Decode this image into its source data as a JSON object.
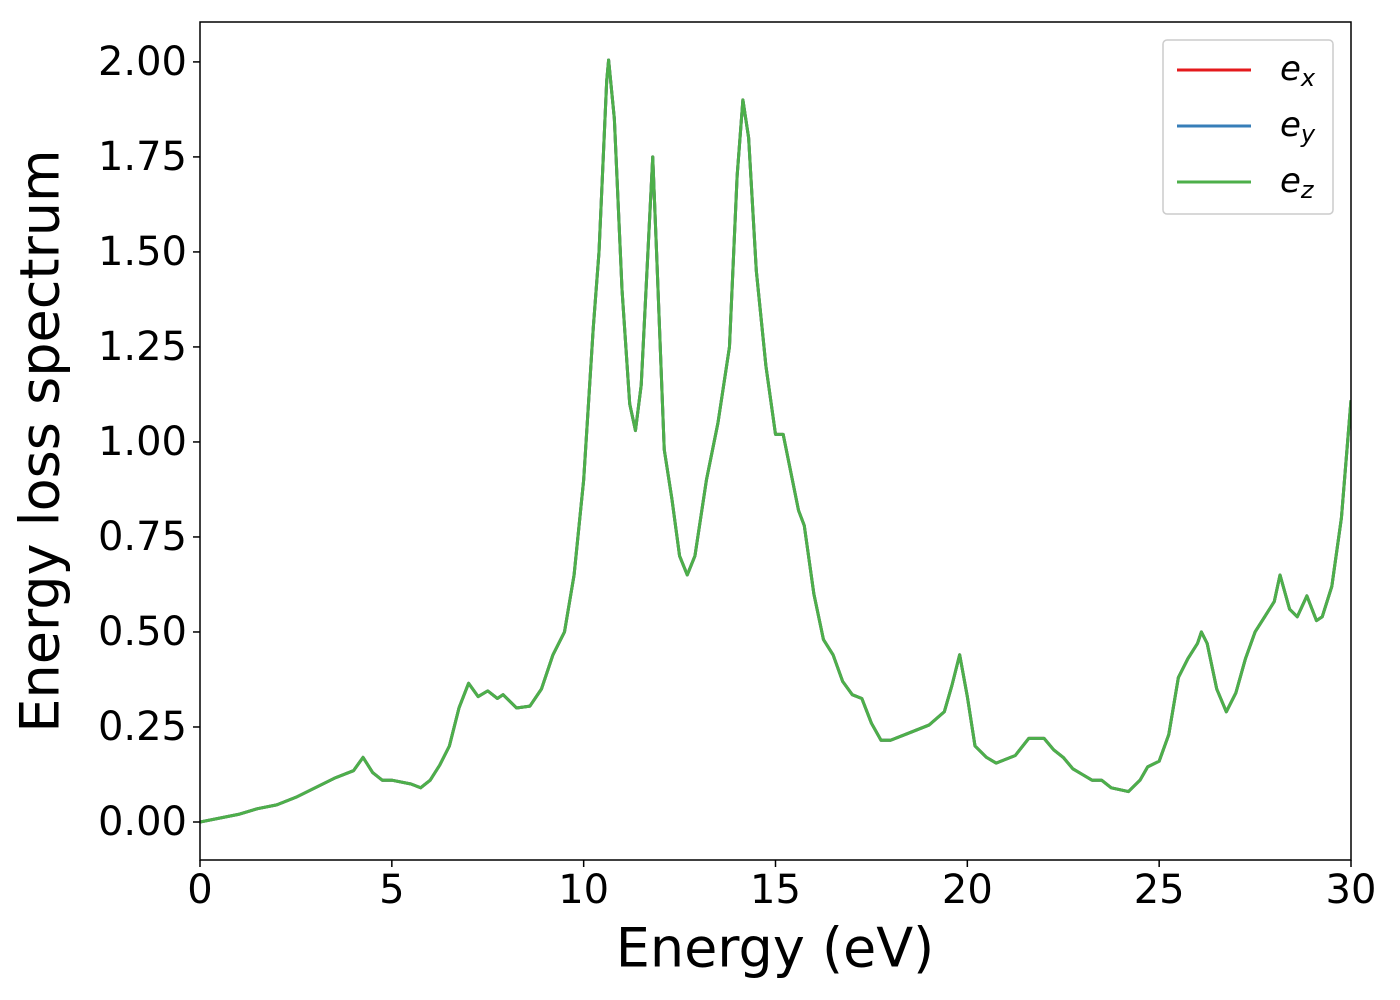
{
  "chart_data": {
    "type": "line",
    "xlabel": "Energy (eV)",
    "ylabel": "Energy loss spectrum",
    "xlim": [
      0,
      30
    ],
    "ylim": [
      -0.1,
      2.105
    ],
    "xticks": [
      0,
      5,
      10,
      15,
      20,
      25,
      30
    ],
    "yticks": [
      {
        "value": 0,
        "label": "0.00"
      },
      {
        "value": 0.25,
        "label": "0.25"
      },
      {
        "value": 0.5,
        "label": "0.50"
      },
      {
        "value": 0.75,
        "label": "0.75"
      },
      {
        "value": 1,
        "label": "1.00"
      },
      {
        "value": 1.25,
        "label": "1.25"
      },
      {
        "value": 1.5,
        "label": "1.50"
      },
      {
        "value": 1.75,
        "label": "1.75"
      },
      {
        "value": 2,
        "label": "2.00"
      }
    ],
    "grid": false,
    "legend": "upper right",
    "x": [
      0,
      1,
      1.5,
      2,
      2.5,
      3,
      3.5,
      4,
      4.25,
      4.5,
      4.75,
      5,
      5.5,
      5.75,
      6,
      6.25,
      6.5,
      6.75,
      7,
      7.25,
      7.5,
      7.75,
      7.9,
      8.25,
      8.6,
      8.9,
      9.2,
      9.5,
      9.75,
      10,
      10.25,
      10.4,
      10.6,
      10.65,
      10.8,
      11,
      11.2,
      11.35,
      11.5,
      11.7,
      11.8,
      11.9,
      12.1,
      12.3,
      12.5,
      12.7,
      12.9,
      13.2,
      13.5,
      13.8,
      14,
      14.15,
      14.3,
      14.5,
      14.75,
      15,
      15.2,
      15.4,
      15.6,
      15.75,
      16,
      16.25,
      16.5,
      16.75,
      17,
      17.25,
      17.5,
      17.75,
      18,
      18.5,
      19,
      19.4,
      19.6,
      19.8,
      20,
      20.2,
      20.5,
      20.75,
      21.25,
      21.6,
      22,
      22.25,
      22.5,
      22.75,
      23,
      23.25,
      23.5,
      23.75,
      24.2,
      24.5,
      24.7,
      25,
      25.25,
      25.5,
      25.75,
      26,
      26.1,
      26.25,
      26.5,
      26.75,
      27,
      27.25,
      27.5,
      27.75,
      28,
      28.15,
      28.4,
      28.6,
      28.85,
      29.1,
      29.25,
      29.5,
      29.75,
      30
    ],
    "series": [
      {
        "name": "e_x",
        "color": "#e41a1c",
        "values": [
          0,
          0.02,
          0.035,
          0.045,
          0.065,
          0.09,
          0.115,
          0.135,
          0.17,
          0.13,
          0.11,
          0.11,
          0.1,
          0.09,
          0.11,
          0.15,
          0.2,
          0.3,
          0.365,
          0.33,
          0.345,
          0.325,
          0.335,
          0.3,
          0.305,
          0.35,
          0.44,
          0.5,
          0.65,
          0.9,
          1.3,
          1.5,
          1.95,
          2.005,
          1.85,
          1.4,
          1.1,
          1.03,
          1.15,
          1.55,
          1.75,
          1.5,
          0.98,
          0.85,
          0.7,
          0.65,
          0.7,
          0.9,
          1.05,
          1.25,
          1.7,
          1.9,
          1.8,
          1.45,
          1.2,
          1.02,
          1.02,
          0.92,
          0.82,
          0.78,
          0.6,
          0.48,
          0.44,
          0.37,
          0.335,
          0.325,
          0.26,
          0.215,
          0.215,
          0.235,
          0.255,
          0.29,
          0.36,
          0.44,
          0.33,
          0.2,
          0.17,
          0.155,
          0.175,
          0.22,
          0.22,
          0.19,
          0.17,
          0.14,
          0.125,
          0.11,
          0.11,
          0.09,
          0.08,
          0.11,
          0.145,
          0.16,
          0.23,
          0.38,
          0.43,
          0.47,
          0.5,
          0.47,
          0.35,
          0.29,
          0.34,
          0.43,
          0.5,
          0.54,
          0.58,
          0.65,
          0.56,
          0.54,
          0.595,
          0.53,
          0.54,
          0.62,
          0.8,
          1.11
        ]
      },
      {
        "name": "e_y",
        "color": "#377eb8",
        "values": [
          0,
          0.02,
          0.035,
          0.045,
          0.065,
          0.09,
          0.115,
          0.135,
          0.17,
          0.13,
          0.11,
          0.11,
          0.1,
          0.09,
          0.11,
          0.15,
          0.2,
          0.3,
          0.365,
          0.33,
          0.345,
          0.325,
          0.335,
          0.3,
          0.305,
          0.35,
          0.44,
          0.5,
          0.65,
          0.9,
          1.3,
          1.5,
          1.95,
          2.005,
          1.85,
          1.4,
          1.1,
          1.03,
          1.15,
          1.55,
          1.75,
          1.5,
          0.98,
          0.85,
          0.7,
          0.65,
          0.7,
          0.9,
          1.05,
          1.25,
          1.7,
          1.9,
          1.8,
          1.45,
          1.2,
          1.02,
          1.02,
          0.92,
          0.82,
          0.78,
          0.6,
          0.48,
          0.44,
          0.37,
          0.335,
          0.325,
          0.26,
          0.215,
          0.215,
          0.235,
          0.255,
          0.29,
          0.36,
          0.44,
          0.33,
          0.2,
          0.17,
          0.155,
          0.175,
          0.22,
          0.22,
          0.19,
          0.17,
          0.14,
          0.125,
          0.11,
          0.11,
          0.09,
          0.08,
          0.11,
          0.145,
          0.16,
          0.23,
          0.38,
          0.43,
          0.47,
          0.5,
          0.47,
          0.35,
          0.29,
          0.34,
          0.43,
          0.5,
          0.54,
          0.58,
          0.65,
          0.56,
          0.54,
          0.595,
          0.53,
          0.54,
          0.62,
          0.8,
          1.11
        ]
      },
      {
        "name": "e_z",
        "color": "#4daf4a",
        "values": [
          0,
          0.02,
          0.035,
          0.045,
          0.065,
          0.09,
          0.115,
          0.135,
          0.17,
          0.13,
          0.11,
          0.11,
          0.1,
          0.09,
          0.11,
          0.15,
          0.2,
          0.3,
          0.365,
          0.33,
          0.345,
          0.325,
          0.335,
          0.3,
          0.305,
          0.35,
          0.44,
          0.5,
          0.65,
          0.9,
          1.3,
          1.5,
          1.95,
          2.005,
          1.85,
          1.4,
          1.1,
          1.03,
          1.15,
          1.55,
          1.75,
          1.5,
          0.98,
          0.85,
          0.7,
          0.65,
          0.7,
          0.9,
          1.05,
          1.25,
          1.7,
          1.9,
          1.8,
          1.45,
          1.2,
          1.02,
          1.02,
          0.92,
          0.82,
          0.78,
          0.6,
          0.48,
          0.44,
          0.37,
          0.335,
          0.325,
          0.26,
          0.215,
          0.215,
          0.235,
          0.255,
          0.29,
          0.36,
          0.44,
          0.33,
          0.2,
          0.17,
          0.155,
          0.175,
          0.22,
          0.22,
          0.19,
          0.17,
          0.14,
          0.125,
          0.11,
          0.11,
          0.09,
          0.08,
          0.11,
          0.145,
          0.16,
          0.23,
          0.38,
          0.43,
          0.47,
          0.5,
          0.47,
          0.35,
          0.29,
          0.34,
          0.43,
          0.5,
          0.54,
          0.58,
          0.65,
          0.56,
          0.54,
          0.595,
          0.53,
          0.54,
          0.62,
          0.8,
          1.11
        ]
      }
    ]
  }
}
